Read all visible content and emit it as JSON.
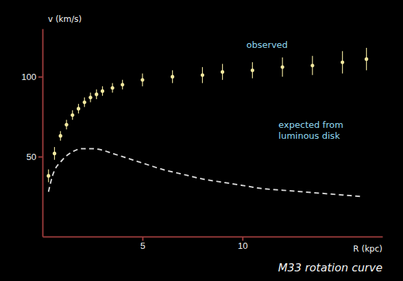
{
  "chart_data": {
    "type": "line",
    "title": "M33 rotation curve",
    "x_label": "R (kpc)",
    "y_label": "v (km/s)",
    "xlim": [
      0,
      17
    ],
    "xticks": [
      5,
      10
    ],
    "ylim": [
      0,
      130
    ],
    "yticks": [
      50,
      100
    ],
    "grid": false,
    "series": [
      {
        "name": "observed",
        "type": "scatter",
        "marker": "circle",
        "color": "#f3e9a0",
        "x": [
          0.3,
          0.6,
          0.9,
          1.2,
          1.5,
          1.8,
          2.1,
          2.4,
          2.7,
          3.0,
          3.5,
          4.0,
          5.0,
          6.5,
          8.0,
          9.0,
          10.5,
          12.0,
          13.5,
          15.0,
          16.2
        ],
        "values": [
          38,
          52,
          63,
          70,
          76,
          80,
          84,
          87,
          89,
          91,
          93,
          95,
          98,
          100,
          101,
          103,
          104,
          106,
          107,
          109,
          111
        ],
        "errors": [
          4,
          4,
          3,
          3,
          3,
          3,
          3,
          3,
          3,
          3,
          3,
          3,
          4,
          4,
          5,
          5,
          5,
          6,
          6,
          7,
          7
        ]
      },
      {
        "name": "expected from luminous disk",
        "type": "line",
        "line_style": "dashed",
        "color": "#d8d8d8",
        "x": [
          0.3,
          0.5,
          1,
          1.5,
          2,
          2.5,
          3,
          3.5,
          4,
          5,
          6,
          7,
          8,
          9,
          10,
          11,
          12,
          13,
          14,
          15,
          16
        ],
        "values": [
          28,
          38,
          48,
          53,
          55,
          55,
          54,
          52,
          50,
          46,
          42,
          39,
          36,
          34,
          32,
          30,
          29,
          28,
          27,
          26,
          25
        ]
      }
    ]
  }
}
